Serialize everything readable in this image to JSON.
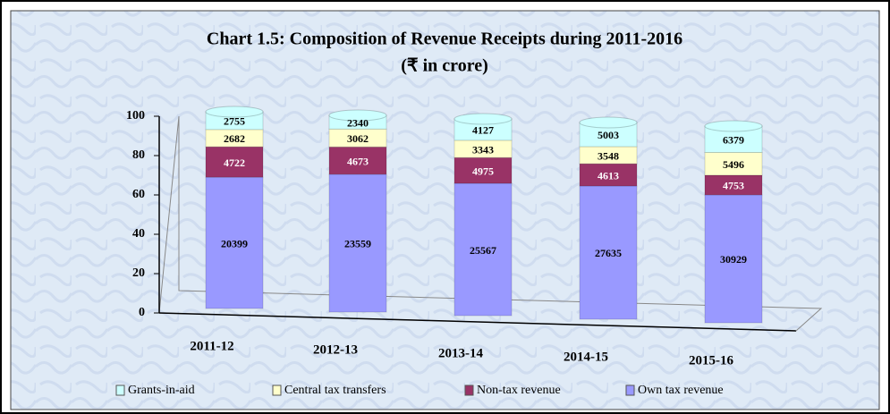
{
  "chart_data": {
    "type": "bar",
    "stacking": "percent",
    "title": "Chart 1.5: Composition of Revenue Receipts during 2011-2016",
    "subtitle": "(₹ in crore)",
    "categories": [
      "2011-12",
      "2012-13",
      "2013-14",
      "2014-15",
      "2015-16"
    ],
    "series": [
      {
        "name": "Own tax revenue",
        "color": "#9999ff",
        "values": [
          20399,
          23559,
          25567,
          27635,
          30929
        ]
      },
      {
        "name": "Non-tax revenue",
        "color": "#993366",
        "values": [
          4722,
          4673,
          4975,
          4613,
          4753
        ]
      },
      {
        "name": "Central tax transfers",
        "color": "#ffffcc",
        "values": [
          2682,
          3062,
          3343,
          3548,
          5496
        ]
      },
      {
        "name": "Grants-in-aid",
        "color": "#ccffff",
        "values": [
          2755,
          2340,
          4127,
          5003,
          6379
        ]
      }
    ],
    "ylim": [
      0,
      100
    ],
    "yticks": [
      0,
      20,
      40,
      60,
      80,
      100
    ],
    "legend": "bottom"
  }
}
